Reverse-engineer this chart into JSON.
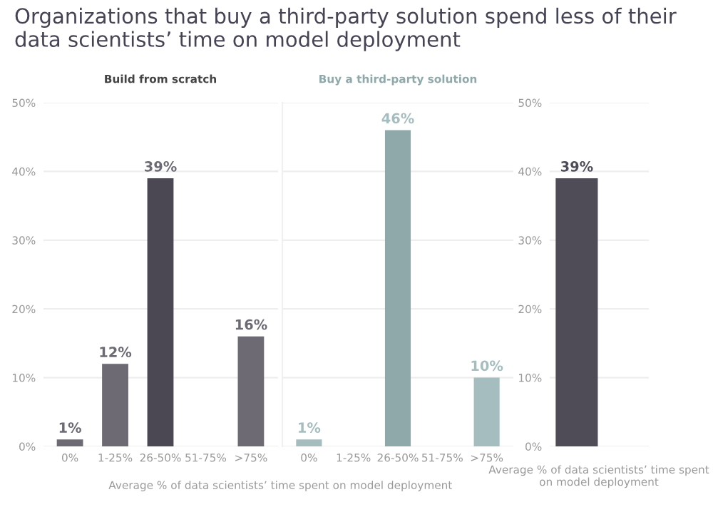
{
  "chart_data": [
    {
      "type": "bar",
      "title": "Organizations that buy a third-party solution spend less of their data scientists’ time on model deployment",
      "subtitle": "Build from scratch",
      "xlabel": "Average % of data scientists’ time spent on model deployment",
      "categories": [
        "0%",
        "1-25%",
        "26-50%",
        "51-75%",
        ">75%"
      ],
      "values": [
        1,
        12,
        39,
        null,
        16
      ],
      "colors": [
        "#6e6a74",
        "#6e6a74",
        "#4b4854",
        "#5c5963",
        "#6e6a74"
      ],
      "value_labels": [
        "1%",
        "12%",
        "39%",
        null,
        "16%"
      ],
      "ylim": [
        0,
        50
      ],
      "yticks": [
        {
          "value": 0,
          "label": "0%"
        },
        {
          "value": 10,
          "label": "10%"
        },
        {
          "value": 20,
          "label": "20%"
        },
        {
          "value": 30,
          "label": "30%"
        },
        {
          "value": 40,
          "label": "40%"
        },
        {
          "value": 50,
          "label": "50%"
        }
      ],
      "grid": "y"
    },
    {
      "type": "bar",
      "subtitle": "Buy a third-party solution",
      "categories": [
        "0%",
        "1-25%",
        "26-50%",
        "51-75%",
        ">75%"
      ],
      "values": [
        1,
        null,
        46,
        null,
        10
      ],
      "colors": [
        "#a6bdbf",
        "#a6bdbf",
        "#8fa9ab",
        "#a6bdbf",
        "#a6bdbf"
      ],
      "value_labels": [
        "1%",
        null,
        "46%",
        null,
        "10%"
      ],
      "ylim": [
        0,
        50
      ],
      "yticks": [
        {
          "value": 0,
          "label": null
        },
        {
          "value": 10,
          "label": null
        },
        {
          "value": 20,
          "label": null
        },
        {
          "value": 30,
          "label": null
        },
        {
          "value": 40,
          "label": null
        },
        {
          "value": 50,
          "label": null
        }
      ],
      "grid": "y",
      "tick_labels": "x"
    },
    {
      "type": "bar",
      "xlabel": "Average % of data scientists’ time spent on model deployment",
      "categories": [
        null
      ],
      "series": [
        {
          "color": "#4f4c58",
          "values": [
            39
          ],
          "value_labels": [
            "39%"
          ]
        },
        {
          "color": "#93adb0",
          "values": [
            null
          ],
          "value_labels": [
            null
          ]
        }
      ],
      "ylim": [
        0,
        50
      ],
      "yticks": [
        {
          "value": 0,
          "label": "0%"
        },
        {
          "value": 10,
          "label": "10%"
        },
        {
          "value": 20,
          "label": "20%"
        },
        {
          "value": 30,
          "label": "30%"
        },
        {
          "value": 40,
          "label": "40%"
        },
        {
          "value": 50,
          "label": "50%"
        }
      ],
      "grid": "y"
    }
  ]
}
